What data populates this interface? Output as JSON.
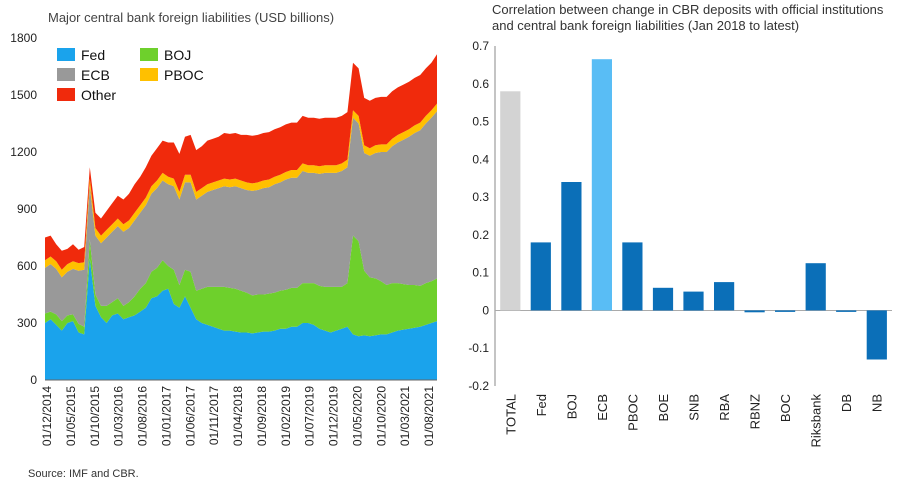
{
  "source": "Source: IMF and CBR.",
  "chart_data": [
    {
      "type": "area",
      "stacked": true,
      "title": "Major central bank foreign liabilities (USD billions)",
      "xlabel": "",
      "ylabel": "",
      "ylim": [
        0,
        1800
      ],
      "yticks": [
        0,
        300,
        600,
        900,
        1200,
        1500,
        1800
      ],
      "xtick_labels": [
        "01/12/2014",
        "01/05/2015",
        "01/10/2015",
        "01/03/2016",
        "01/08/2016",
        "01/01/2017",
        "01/06/2017",
        "01/11/2017",
        "01/04/2018",
        "01/09/2018",
        "01/02/2019",
        "01/07/2019",
        "01/12/2019",
        "01/05/2020",
        "01/10/2020",
        "01/03/2021",
        "01/08/2021"
      ],
      "legend_placement": "top-left",
      "x_start": "2014-12",
      "x_end": "2021-12",
      "series": [
        {
          "name": "Fed",
          "color": "#1aa3ec",
          "values": [
            300,
            320,
            290,
            260,
            300,
            310,
            250,
            240,
            640,
            390,
            330,
            300,
            340,
            350,
            320,
            330,
            340,
            360,
            380,
            430,
            440,
            470,
            480,
            400,
            380,
            440,
            380,
            320,
            300,
            290,
            280,
            270,
            260,
            260,
            255,
            250,
            250,
            245,
            250,
            255,
            255,
            260,
            270,
            270,
            280,
            280,
            300,
            300,
            290,
            270,
            260,
            250,
            260,
            270,
            280,
            240,
            230,
            235,
            230,
            235,
            240,
            240,
            250,
            260,
            265,
            270,
            275,
            280,
            290,
            300,
            310
          ]
        },
        {
          "name": "BOJ",
          "color": "#6ed02c",
          "values": [
            50,
            40,
            55,
            50,
            40,
            35,
            45,
            40,
            100,
            60,
            60,
            90,
            70,
            80,
            70,
            80,
            100,
            120,
            130,
            140,
            150,
            160,
            120,
            180,
            120,
            140,
            190,
            150,
            180,
            200,
            210,
            220,
            230,
            225,
            225,
            220,
            210,
            200,
            200,
            195,
            200,
            200,
            200,
            205,
            205,
            205,
            210,
            210,
            220,
            225,
            230,
            240,
            230,
            220,
            230,
            520,
            500,
            340,
            310,
            300,
            280,
            260,
            260,
            250,
            240,
            230,
            225,
            215,
            220,
            220,
            225
          ]
        },
        {
          "name": "ECB",
          "color": "#999999",
          "values": [
            240,
            250,
            240,
            230,
            230,
            240,
            280,
            300,
            280,
            310,
            330,
            360,
            370,
            380,
            390,
            390,
            400,
            400,
            410,
            410,
            420,
            420,
            430,
            440,
            450,
            460,
            470,
            480,
            490,
            500,
            510,
            520,
            530,
            530,
            540,
            540,
            540,
            550,
            550,
            560,
            560,
            570,
            570,
            580,
            580,
            580,
            590,
            580,
            580,
            590,
            600,
            600,
            600,
            610,
            610,
            620,
            620,
            620,
            640,
            660,
            680,
            700,
            720,
            740,
            760,
            780,
            800,
            820,
            840,
            860,
            880
          ]
        },
        {
          "name": "PBOC",
          "color": "#ffc000",
          "values": [
            40,
            40,
            40,
            40,
            40,
            40,
            40,
            40,
            40,
            40,
            40,
            40,
            40,
            40,
            40,
            40,
            40,
            40,
            40,
            40,
            40,
            40,
            40,
            40,
            40,
            40,
            40,
            40,
            40,
            40,
            40,
            40,
            40,
            40,
            40,
            40,
            40,
            40,
            40,
            40,
            40,
            40,
            40,
            40,
            40,
            40,
            40,
            40,
            40,
            40,
            40,
            40,
            40,
            40,
            40,
            40,
            40,
            40,
            40,
            40,
            40,
            40,
            40,
            40,
            40,
            40,
            40,
            40,
            40,
            40,
            40
          ]
        },
        {
          "name": "Other",
          "color": "#f02a0c",
          "values": [
            120,
            110,
            90,
            100,
            80,
            90,
            70,
            80,
            60,
            80,
            90,
            100,
            110,
            120,
            130,
            140,
            150,
            150,
            160,
            160,
            170,
            170,
            180,
            190,
            200,
            200,
            210,
            220,
            220,
            230,
            230,
            230,
            240,
            240,
            240,
            240,
            250,
            250,
            250,
            250,
            250,
            250,
            250,
            250,
            250,
            250,
            250,
            250,
            250,
            250,
            250,
            250,
            250,
            250,
            250,
            250,
            250,
            250,
            250,
            250,
            250,
            250,
            250,
            250,
            250,
            250,
            250,
            250,
            250,
            250,
            260
          ]
        }
      ]
    },
    {
      "type": "bar",
      "title": "Correlation between change in CBR deposits with official institutions and central bank foreign liabilities (Jan 2018 to latest)",
      "xlabel": "",
      "ylabel": "",
      "ylim": [
        -0.2,
        0.7
      ],
      "yticks": [
        -0.2,
        -0.1,
        0,
        0.1,
        0.2,
        0.3,
        0.4,
        0.5,
        0.6,
        0.7
      ],
      "ytick_labels": [
        "-0.2",
        "-0.1",
        "0",
        "0.1",
        "0.2",
        "0.3",
        "0.4",
        "0.5",
        "0.6",
        "0.7"
      ],
      "categories": [
        "TOTAL",
        "Fed",
        "BOJ",
        "ECB",
        "PBOC",
        "BOE",
        "SNB",
        "RBA",
        "RBNZ",
        "BOC",
        "Riksbank",
        "DB",
        "NB"
      ],
      "values": [
        0.58,
        0.18,
        0.34,
        0.665,
        0.18,
        0.06,
        0.05,
        0.075,
        -0.005,
        0.0,
        0.125,
        -0.003,
        -0.13
      ],
      "colors": [
        "#d3d3d3",
        "#0b6fb8",
        "#0b6fb8",
        "#59bdf5",
        "#0b6fb8",
        "#0b6fb8",
        "#0b6fb8",
        "#0b6fb8",
        "#0b6fb8",
        "#0b6fb8",
        "#0b6fb8",
        "#0b6fb8",
        "#0b6fb8"
      ]
    }
  ]
}
